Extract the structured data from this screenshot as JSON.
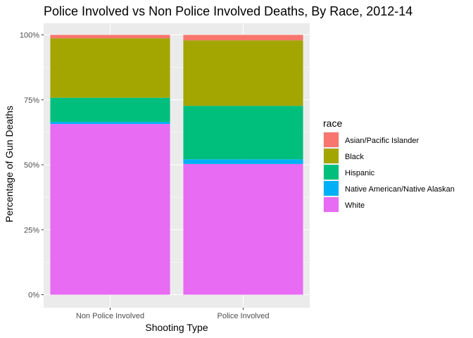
{
  "chart_data": {
    "type": "bar",
    "stacked": true,
    "percent": true,
    "title": "Police Involved vs Non Police Involved Deaths, By Race, 2012-14",
    "xlabel": "Shooting Type",
    "ylabel": "Percentage of Gun Deaths",
    "categories": [
      "Non Police Involved",
      "Police Involved"
    ],
    "ylim": [
      0,
      1
    ],
    "yticks": [
      0,
      0.25,
      0.5,
      0.75,
      1.0
    ],
    "ytick_labels": [
      "0%",
      "25%",
      "50%",
      "75%",
      "100%"
    ],
    "grid": true,
    "legend": {
      "title": "race",
      "position": "right"
    },
    "series": [
      {
        "name": "White",
        "color": "#E76BF3",
        "values": [
          0.657,
          0.503
        ]
      },
      {
        "name": "Native American/Native Alaskan",
        "color": "#00B0F6",
        "values": [
          0.008,
          0.018
        ]
      },
      {
        "name": "Hispanic",
        "color": "#00BF7D",
        "values": [
          0.093,
          0.206
        ]
      },
      {
        "name": "Black",
        "color": "#A3A500",
        "values": [
          0.229,
          0.252
        ]
      },
      {
        "name": "Asian/Pacific Islander",
        "color": "#F8766D",
        "values": [
          0.013,
          0.021
        ]
      }
    ],
    "legend_order": [
      "Asian/Pacific Islander",
      "Black",
      "Hispanic",
      "Native American/Native Alaskan",
      "White"
    ]
  }
}
